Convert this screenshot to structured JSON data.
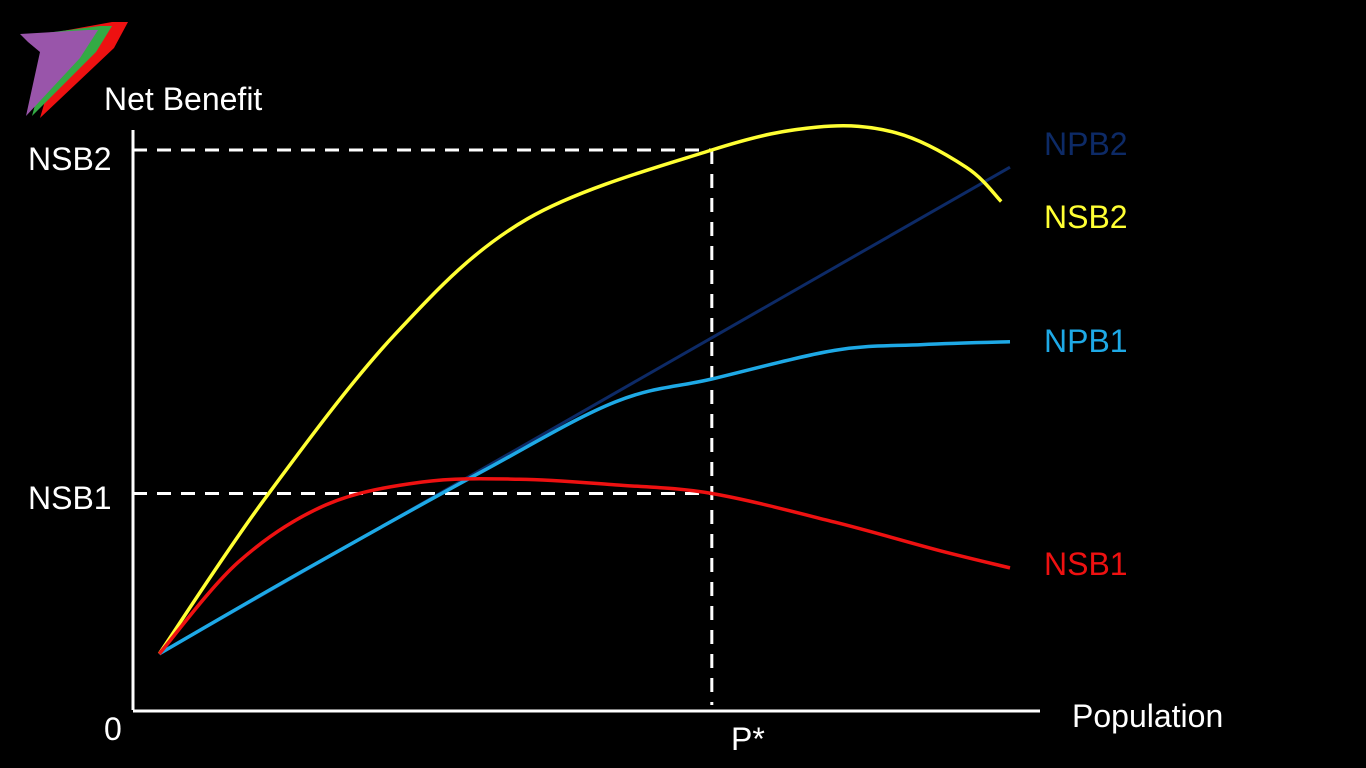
{
  "chart_data": {
    "type": "line",
    "title": "",
    "ylabel": "Net Benefit",
    "xlabel": "Population",
    "origin_label": "0",
    "xlim": [
      0,
      10
    ],
    "ylim": [
      0,
      10
    ],
    "x_marker": {
      "label": "P*",
      "x": 6.6,
      "color": "#ffffff"
    },
    "y_markers": [
      {
        "label": "NSB2",
        "y": 9.8
      },
      {
        "label": "NSB1",
        "y": 3.8
      }
    ],
    "series": [
      {
        "name": "NPB2",
        "color": "#0d2a66",
        "x": [
          0.3,
          10
        ],
        "y": [
          1.0,
          9.5
        ]
      },
      {
        "name": "NSB2",
        "color": "#ffff33",
        "x": [
          0.3,
          1.5,
          3.0,
          4.5,
          6.6,
          7.8,
          8.7,
          9.5,
          9.9
        ],
        "y": [
          1.0,
          3.7,
          6.6,
          8.6,
          9.8,
          10.2,
          10.1,
          9.5,
          8.9
        ]
      },
      {
        "name": "NPB1",
        "color": "#1ea9e6",
        "x": [
          0.3,
          2.0,
          4.0,
          5.5,
          6.6,
          8.0,
          9.0,
          10
        ],
        "y": [
          1.0,
          2.5,
          4.2,
          5.4,
          5.8,
          6.3,
          6.4,
          6.45
        ]
      },
      {
        "name": "NSB1",
        "color": "#ee1111",
        "x": [
          0.3,
          1.2,
          2.2,
          3.3,
          4.4,
          5.5,
          6.6,
          8.0,
          9.2,
          10
        ],
        "y": [
          1.0,
          2.6,
          3.6,
          4.0,
          4.05,
          3.95,
          3.8,
          3.3,
          2.8,
          2.5
        ]
      }
    ]
  }
}
